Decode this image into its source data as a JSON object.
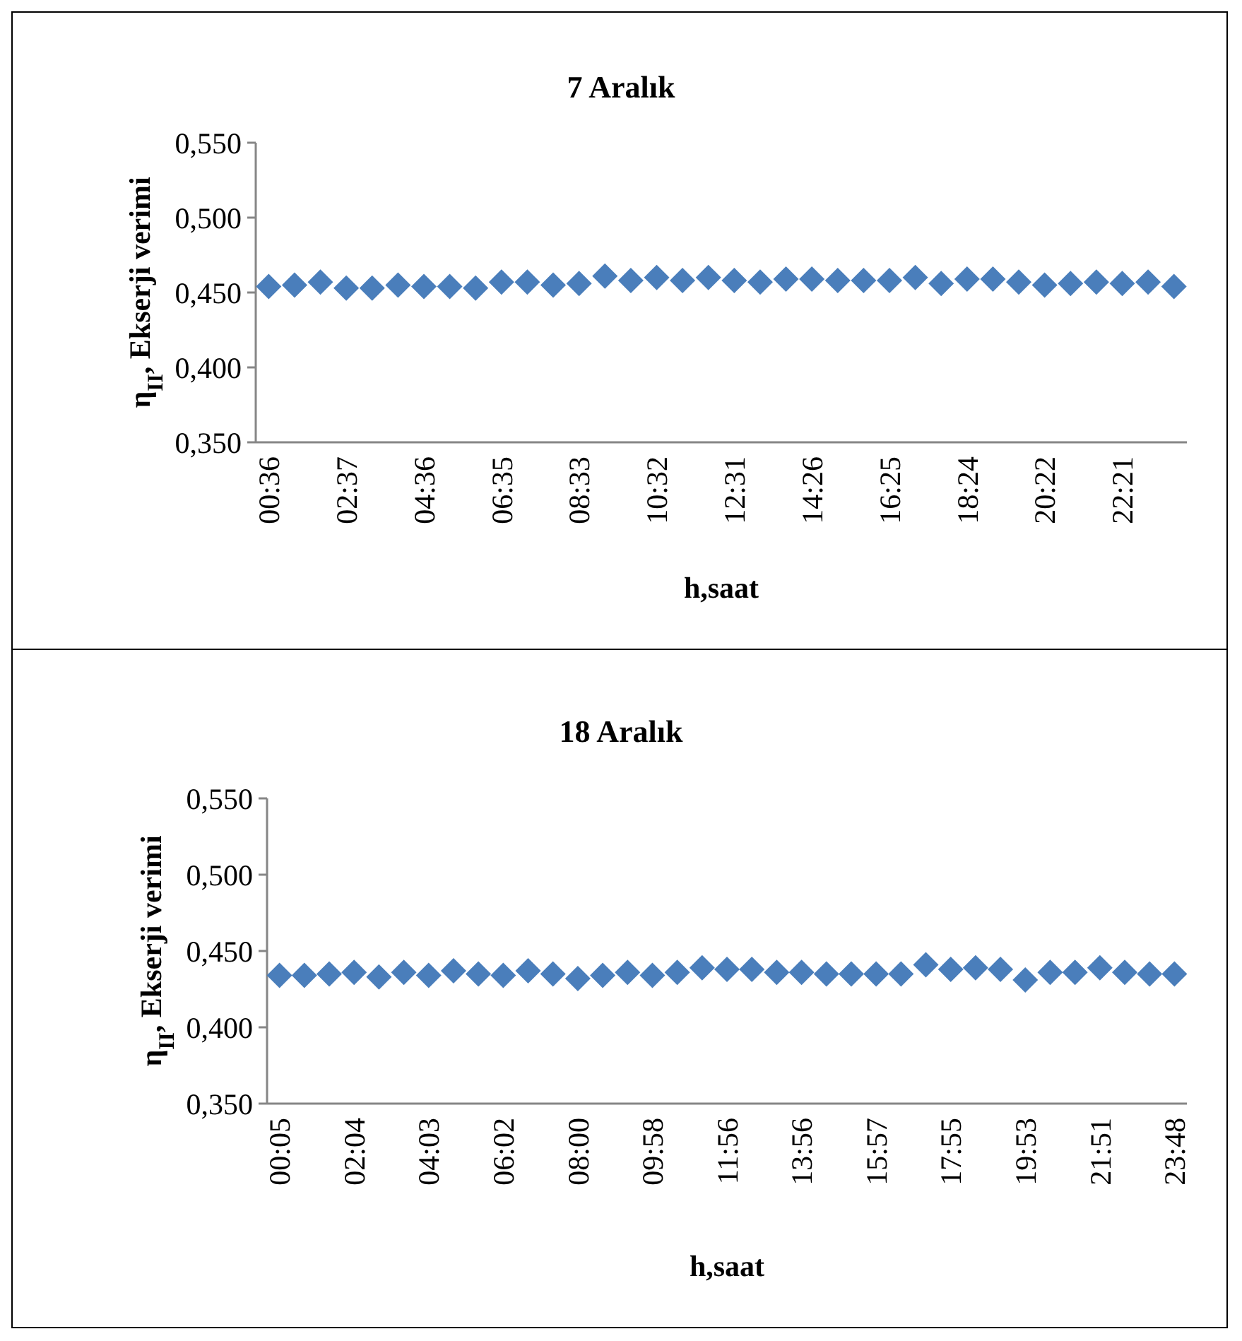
{
  "chart_data": [
    {
      "type": "scatter",
      "title": "7 Aralık",
      "xlabel": "h,saat",
      "ylabel": "η$_{II}$, Ekserji verimi",
      "marker": "diamond",
      "grid": false,
      "categories": [
        "00:36",
        null,
        null,
        "02:37",
        null,
        null,
        "04:36",
        null,
        null,
        "06:35",
        null,
        null,
        "08:33",
        null,
        null,
        "10:32",
        null,
        null,
        "12:31",
        null,
        null,
        "14:26",
        null,
        null,
        "16:25",
        null,
        null,
        "18:24",
        null,
        null,
        "20:22",
        null,
        null,
        "22:21",
        null,
        null
      ],
      "ylim": [
        0.35,
        0.55
      ],
      "yticks": [
        {
          "value": 0.35,
          "label": "0,350"
        },
        {
          "value": 0.4,
          "label": "0,400"
        },
        {
          "value": 0.45,
          "label": "0,450"
        },
        {
          "value": 0.5,
          "label": "0,500"
        },
        {
          "value": 0.55,
          "label": "0,550"
        }
      ],
      "series": [
        {
          "color": "#4a7ebb",
          "values": [
            0.454,
            0.455,
            0.457,
            0.453,
            0.453,
            0.455,
            0.454,
            0.454,
            0.453,
            0.457,
            0.457,
            0.455,
            0.456,
            0.461,
            0.458,
            0.46,
            0.458,
            0.46,
            0.458,
            0.457,
            0.459,
            0.459,
            0.458,
            0.458,
            0.458,
            0.46,
            0.456,
            0.459,
            0.459,
            0.457,
            0.455,
            0.456,
            0.457,
            0.456,
            0.457,
            0.454
          ]
        }
      ]
    },
    {
      "type": "scatter",
      "title": "18 Aralık",
      "xlabel": "h,saat",
      "ylabel": "η$_{II}$, Ekserji verimi",
      "marker": "diamond",
      "grid": false,
      "categories": [
        "00:05",
        null,
        null,
        "02:04",
        null,
        null,
        "04:03",
        null,
        null,
        "06:02",
        null,
        null,
        "08:00",
        null,
        null,
        "09:58",
        null,
        null,
        "11:56",
        null,
        null,
        "13:56",
        null,
        null,
        "15:57",
        null,
        null,
        "17:55",
        null,
        null,
        "19:53",
        null,
        null,
        "21:51",
        null,
        null,
        "23:48"
      ],
      "ylim": [
        0.35,
        0.55
      ],
      "yticks": [
        {
          "value": 0.35,
          "label": "0,350"
        },
        {
          "value": 0.4,
          "label": "0,400"
        },
        {
          "value": 0.45,
          "label": "0,450"
        },
        {
          "value": 0.5,
          "label": "0,500"
        },
        {
          "value": 0.55,
          "label": "0,550"
        }
      ],
      "series": [
        {
          "color": "#4a7ebb",
          "values": [
            0.434,
            0.434,
            0.435,
            0.436,
            0.433,
            0.436,
            0.434,
            0.437,
            0.435,
            0.434,
            0.437,
            0.435,
            0.432,
            0.434,
            0.436,
            0.434,
            0.436,
            0.439,
            0.438,
            0.438,
            0.436,
            0.436,
            0.435,
            0.435,
            0.435,
            0.435,
            0.441,
            0.438,
            0.439,
            0.438,
            0.431,
            0.436,
            0.436,
            0.439,
            0.436,
            0.435,
            0.435
          ]
        }
      ]
    }
  ]
}
